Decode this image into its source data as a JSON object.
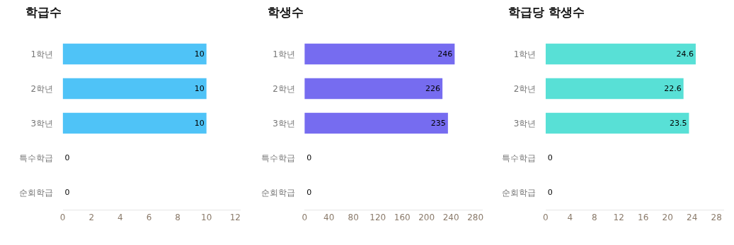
{
  "chart_data": [
    {
      "type": "bar",
      "orientation": "horizontal",
      "title": "학급수",
      "categories": [
        "1학년",
        "2학년",
        "3학년",
        "특수학급",
        "순회학급"
      ],
      "values": [
        10,
        10,
        10,
        0,
        0
      ],
      "color": "#4fc3f7",
      "xlim": [
        0,
        12.4
      ],
      "xticks": [
        0,
        2,
        4,
        6,
        8,
        10,
        12
      ],
      "data_labels": true
    },
    {
      "type": "bar",
      "orientation": "horizontal",
      "title": "학생수",
      "categories": [
        "1학년",
        "2학년",
        "3학년",
        "특수학급",
        "순회학급"
      ],
      "values": [
        246,
        226,
        235,
        0,
        0
      ],
      "color": "#766cf0",
      "xlim": [
        0,
        292
      ],
      "xticks": [
        0,
        40,
        80,
        120,
        160,
        200,
        240,
        280
      ],
      "data_labels": true
    },
    {
      "type": "bar",
      "orientation": "horizontal",
      "title": "학급당 학생수",
      "categories": [
        "1학년",
        "2학년",
        "3학년",
        "특수학급",
        "순회학급"
      ],
      "values": [
        24.6,
        22.6,
        23.5,
        0,
        0
      ],
      "color": "#58e0d6",
      "xlim": [
        0,
        29.2
      ],
      "xticks": [
        0,
        4,
        8,
        12,
        16,
        20,
        24,
        28
      ],
      "data_labels": true
    }
  ]
}
